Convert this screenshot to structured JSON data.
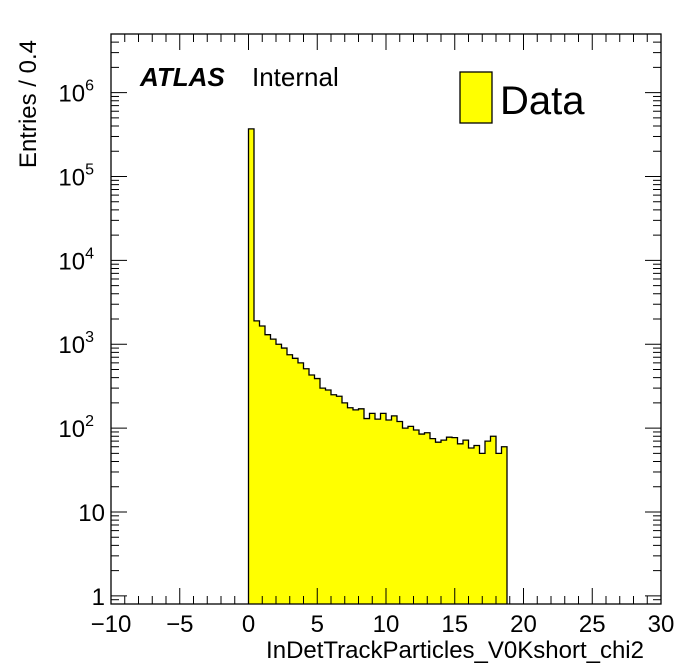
{
  "chart_data": {
    "type": "histogram",
    "xlabel": "InDetTrackParticles_V0Kshort_chi2",
    "ylabel": "Entries / 0.4",
    "xlim": [
      -10,
      30
    ],
    "ylim": [
      0.8,
      5000000
    ],
    "yscale": "log",
    "bin_width": 0.4,
    "x_start": 0,
    "fill_color": "#ffff00",
    "line_color": "#000000",
    "atlas_label": "ATLAS",
    "atlas_sublabel": "Internal",
    "legend": {
      "entries": [
        "Data"
      ],
      "position": "top-right"
    },
    "x_ticks": [
      {
        "value": -10,
        "label": "−10"
      },
      {
        "value": -5,
        "label": "−5"
      },
      {
        "value": 0,
        "label": "0"
      },
      {
        "value": 5,
        "label": "5"
      },
      {
        "value": 10,
        "label": "10"
      },
      {
        "value": 15,
        "label": "15"
      },
      {
        "value": 20,
        "label": "20"
      },
      {
        "value": 25,
        "label": "25"
      },
      {
        "value": 30,
        "label": "30"
      }
    ],
    "y_ticks": [
      {
        "value": 1,
        "base": "1",
        "exp": ""
      },
      {
        "value": 10,
        "base": "10",
        "exp": ""
      },
      {
        "value": 100,
        "base": "10",
        "exp": "2"
      },
      {
        "value": 1000,
        "base": "10",
        "exp": "3"
      },
      {
        "value": 10000,
        "base": "10",
        "exp": "4"
      },
      {
        "value": 100000,
        "base": "10",
        "exp": "5"
      },
      {
        "value": 1000000,
        "base": "10",
        "exp": "6"
      }
    ],
    "values": [
      370000,
      1900,
      1650,
      1300,
      1150,
      1000,
      900,
      750,
      680,
      600,
      510,
      430,
      390,
      300,
      285,
      250,
      240,
      200,
      175,
      165,
      170,
      130,
      150,
      128,
      150,
      125,
      140,
      120,
      100,
      105,
      95,
      85,
      88,
      75,
      68,
      72,
      78,
      77,
      65,
      72,
      58,
      62,
      50,
      70,
      80,
      50,
      60
    ]
  }
}
